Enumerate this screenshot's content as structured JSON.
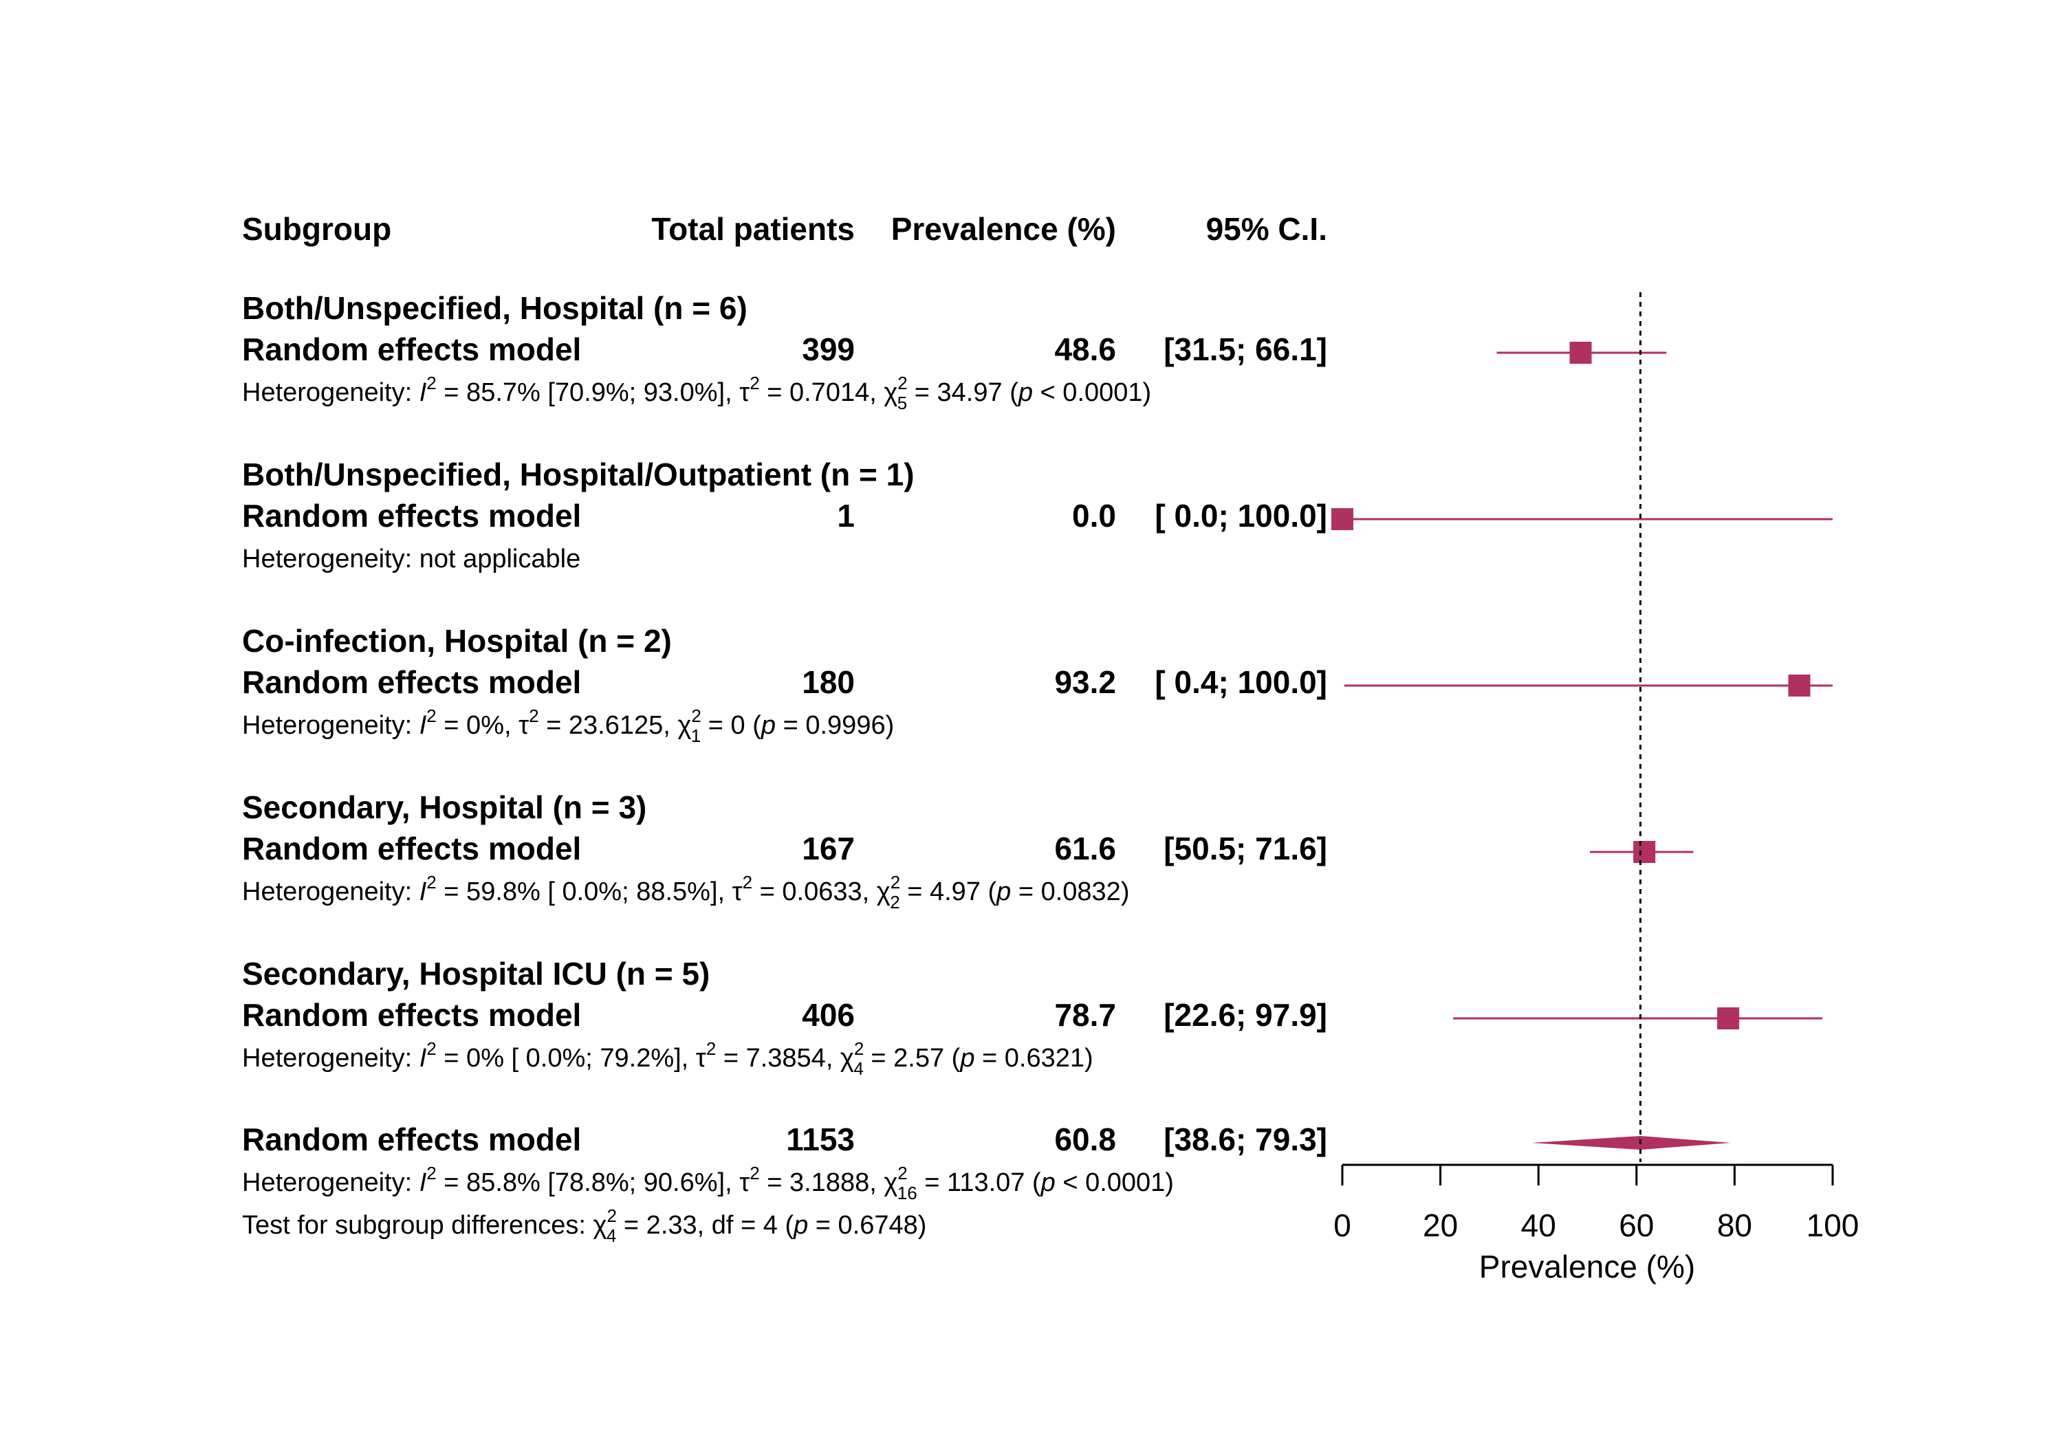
{
  "chart_data": {
    "type": "forest",
    "xlabel": "Prevalence (%)",
    "xlim": [
      0,
      100
    ],
    "xticks": [
      "0",
      "20",
      "40",
      "60",
      "80",
      "100"
    ],
    "reference_value": 60.8,
    "columns": {
      "subgroup": "Subgroup",
      "total": "Total patients",
      "prevalence": "Prevalence (%)",
      "ci": "95% C.I."
    },
    "colors": {
      "marker": "#b03060",
      "axis": "#000000"
    },
    "subgroups": [
      {
        "title": "Both/Unspecified, Hospital (n = 6)",
        "model": "Random effects model",
        "total": "399",
        "prev_label": "48.6",
        "ci_label": "[31.5;  66.1]",
        "estimate": 48.6,
        "lower": 31.5,
        "upper": 66.1,
        "het": [
          {
            "t": "Heterogeneity: "
          },
          {
            "t": "I",
            "s": "i"
          },
          {
            "t": "2",
            "s": "sup"
          },
          {
            "t": " = 85.7% [70.9%; 93.0%], τ"
          },
          {
            "t": "2",
            "s": "sup"
          },
          {
            "t": " = 0.7014, χ"
          },
          {
            "t": "2",
            "s": "sup"
          },
          {
            "t": "5",
            "s": "sub"
          },
          {
            "t": " = 34.97 ("
          },
          {
            "t": "p",
            "s": "i"
          },
          {
            "t": " < 0.0001)"
          }
        ]
      },
      {
        "title": "Both/Unspecified, Hospital/Outpatient (n = 1)",
        "model": "Random effects model",
        "total": "1",
        "prev_label": "0.0",
        "ci_label": "[ 0.0; 100.0]",
        "estimate": 0.0,
        "lower": 0.0,
        "upper": 100.0,
        "het": [
          {
            "t": "Heterogeneity: not applicable"
          }
        ]
      },
      {
        "title": "Co-infection, Hospital (n = 2)",
        "model": "Random effects model",
        "total": "180",
        "prev_label": "93.2",
        "ci_label": "[ 0.4; 100.0]",
        "estimate": 93.2,
        "lower": 0.4,
        "upper": 100.0,
        "het": [
          {
            "t": "Heterogeneity: "
          },
          {
            "t": "I",
            "s": "i"
          },
          {
            "t": "2",
            "s": "sup"
          },
          {
            "t": " = 0%, τ"
          },
          {
            "t": "2",
            "s": "sup"
          },
          {
            "t": " = 23.6125, χ"
          },
          {
            "t": "2",
            "s": "sup"
          },
          {
            "t": "1",
            "s": "sub"
          },
          {
            "t": " = 0 ("
          },
          {
            "t": "p",
            "s": "i"
          },
          {
            "t": " = 0.9996)"
          }
        ]
      },
      {
        "title": "Secondary, Hospital (n = 3)",
        "model": "Random effects model",
        "total": "167",
        "prev_label": "61.6",
        "ci_label": "[50.5;  71.6]",
        "estimate": 61.6,
        "lower": 50.5,
        "upper": 71.6,
        "het": [
          {
            "t": "Heterogeneity: "
          },
          {
            "t": "I",
            "s": "i"
          },
          {
            "t": "2",
            "s": "sup"
          },
          {
            "t": " = 59.8% [ 0.0%; 88.5%], τ"
          },
          {
            "t": "2",
            "s": "sup"
          },
          {
            "t": " = 0.0633, χ"
          },
          {
            "t": "2",
            "s": "sup"
          },
          {
            "t": "2",
            "s": "sub"
          },
          {
            "t": " = 4.97 ("
          },
          {
            "t": "p",
            "s": "i"
          },
          {
            "t": " = 0.0832)"
          }
        ]
      },
      {
        "title": "Secondary, Hospital ICU (n = 5)",
        "model": "Random effects model",
        "total": "406",
        "prev_label": "78.7",
        "ci_label": "[22.6;  97.9]",
        "estimate": 78.7,
        "lower": 22.6,
        "upper": 97.9,
        "het": [
          {
            "t": "Heterogeneity: "
          },
          {
            "t": "I",
            "s": "i"
          },
          {
            "t": "2",
            "s": "sup"
          },
          {
            "t": " = 0% [ 0.0%; 79.2%], τ"
          },
          {
            "t": "2",
            "s": "sup"
          },
          {
            "t": " = 7.3854, χ"
          },
          {
            "t": "2",
            "s": "sup"
          },
          {
            "t": "4",
            "s": "sub"
          },
          {
            "t": " = 2.57 ("
          },
          {
            "t": "p",
            "s": "i"
          },
          {
            "t": " = 0.6321)"
          }
        ]
      }
    ],
    "overall": {
      "model": "Random effects model",
      "total": "1153",
      "prev_label": "60.8",
      "ci_label": "[38.6;  79.3]",
      "estimate": 60.8,
      "lower": 38.6,
      "upper": 79.3,
      "het": [
        {
          "t": "Heterogeneity: "
        },
        {
          "t": "I",
          "s": "i"
        },
        {
          "t": "2",
          "s": "sup"
        },
        {
          "t": " = 85.8% [78.8%; 90.6%], τ"
        },
        {
          "t": "2",
          "s": "sup"
        },
        {
          "t": " = 3.1888, χ"
        },
        {
          "t": "2",
          "s": "sup"
        },
        {
          "t": "16",
          "s": "sub"
        },
        {
          "t": " = 113.07 ("
        },
        {
          "t": "p",
          "s": "i"
        },
        {
          "t": " < 0.0001)"
        }
      ],
      "test": [
        {
          "t": "Test for subgroup differences: χ"
        },
        {
          "t": "2",
          "s": "sup"
        },
        {
          "t": "4",
          "s": "sub"
        },
        {
          "t": " = 2.33, df = 4 ("
        },
        {
          "t": "p",
          "s": "i"
        },
        {
          "t": " = 0.6748)"
        }
      ]
    }
  }
}
